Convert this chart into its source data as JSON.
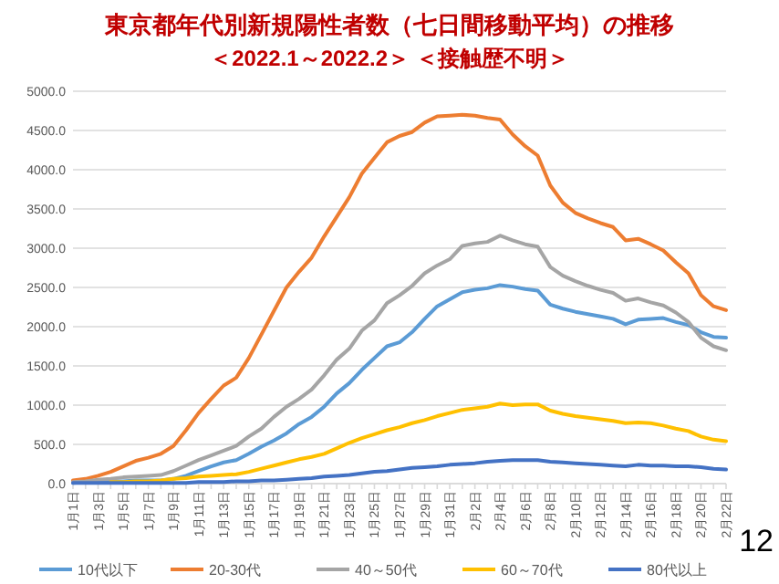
{
  "chart_data": {
    "type": "line",
    "title": "東京都年代別新規陽性者数（七日間移動平均）の推移",
    "subtitle": "＜2022.1～2022.2＞ ＜接触歴不明＞",
    "categories": [
      "1月1日",
      null,
      "1月3日",
      null,
      "1月5日",
      null,
      "1月7日",
      null,
      "1月9日",
      null,
      "1月11日",
      null,
      "1月13日",
      null,
      "1月15日",
      null,
      "1月17日",
      null,
      "1月19日",
      null,
      "1月21日",
      null,
      "1月23日",
      null,
      "1月25日",
      null,
      "1月27日",
      null,
      "1月29日",
      null,
      "1月31日",
      null,
      "2月2日",
      null,
      "2月4日",
      null,
      "2月6日",
      null,
      "2月8日",
      null,
      "2月10日",
      null,
      "2月12日",
      null,
      "2月14日",
      null,
      "2月16日",
      null,
      "2月18日",
      null,
      "2月20日",
      null,
      "2月22日"
    ],
    "series": [
      {
        "name": "10代以下",
        "color": "#5b9bd5",
        "values": [
          10,
          20,
          20,
          30,
          30,
          40,
          40,
          40,
          60,
          100,
          160,
          220,
          270,
          300,
          380,
          470,
          550,
          640,
          760,
          850,
          980,
          1150,
          1280,
          1450,
          1600,
          1750,
          1800,
          1930,
          2100,
          2260,
          2350,
          2440,
          2470,
          2490,
          2530,
          2510,
          2480,
          2460,
          2280,
          2230,
          2190,
          2160,
          2130,
          2100,
          2030,
          2090,
          2100,
          2110,
          2060,
          2020,
          1930,
          1870,
          1860
        ]
      },
      {
        "name": "20-30代",
        "color": "#ed7d31",
        "values": [
          40,
          60,
          100,
          150,
          220,
          290,
          330,
          380,
          480,
          680,
          900,
          1080,
          1250,
          1350,
          1600,
          1900,
          2200,
          2500,
          2700,
          2880,
          3150,
          3400,
          3650,
          3950,
          4150,
          4350,
          4430,
          4480,
          4600,
          4680,
          4690,
          4700,
          4690,
          4660,
          4640,
          4450,
          4300,
          4180,
          3800,
          3580,
          3450,
          3380,
          3320,
          3270,
          3100,
          3120,
          3050,
          2970,
          2820,
          2680,
          2400,
          2260,
          2210
        ]
      },
      {
        "name": "40～50代",
        "color": "#a5a5a5",
        "values": [
          20,
          30,
          50,
          60,
          80,
          90,
          100,
          110,
          160,
          230,
          300,
          360,
          420,
          480,
          600,
          700,
          850,
          980,
          1080,
          1200,
          1380,
          1580,
          1720,
          1950,
          2080,
          2300,
          2400,
          2520,
          2680,
          2780,
          2860,
          3030,
          3060,
          3080,
          3160,
          3100,
          3050,
          3020,
          2760,
          2650,
          2580,
          2520,
          2470,
          2430,
          2330,
          2360,
          2310,
          2270,
          2180,
          2060,
          1860,
          1750,
          1700
        ]
      },
      {
        "name": "60～70代",
        "color": "#ffc000",
        "values": [
          null,
          null,
          null,
          20,
          20,
          30,
          30,
          40,
          60,
          70,
          90,
          100,
          110,
          120,
          150,
          190,
          230,
          270,
          310,
          340,
          380,
          450,
          520,
          580,
          630,
          680,
          720,
          770,
          810,
          860,
          900,
          940,
          960,
          980,
          1020,
          1000,
          1010,
          1010,
          930,
          890,
          860,
          840,
          820,
          800,
          770,
          780,
          770,
          740,
          700,
          670,
          600,
          560,
          540
        ]
      },
      {
        "name": "80代以上",
        "color": "#4472c4",
        "values": [
          10,
          10,
          10,
          10,
          10,
          10,
          10,
          10,
          10,
          10,
          20,
          20,
          20,
          30,
          30,
          40,
          40,
          50,
          60,
          70,
          90,
          100,
          110,
          130,
          150,
          160,
          180,
          200,
          210,
          220,
          240,
          250,
          260,
          280,
          290,
          300,
          300,
          300,
          280,
          270,
          260,
          250,
          240,
          230,
          220,
          240,
          230,
          230,
          220,
          220,
          210,
          190,
          180
        ]
      }
    ],
    "ylim": [
      0,
      5000
    ],
    "yticks": [
      {
        "value": 0,
        "label": "0.0"
      },
      {
        "value": 500,
        "label": "500.0"
      },
      {
        "value": 1000,
        "label": "1000.0"
      },
      {
        "value": 1500,
        "label": "1500.0"
      },
      {
        "value": 2000,
        "label": "2000.0"
      },
      {
        "value": 2500,
        "label": "2500.0"
      },
      {
        "value": 3000,
        "label": "3000.0"
      },
      {
        "value": 3500,
        "label": "3500.0"
      },
      {
        "value": 4000,
        "label": "4000.0"
      },
      {
        "value": 4500,
        "label": "4500.0"
      },
      {
        "value": 5000,
        "label": "5000.0"
      }
    ],
    "grid": "y",
    "legend": "bottom",
    "marker": "none",
    "line_style": "solid",
    "annotations": [
      "12"
    ]
  }
}
